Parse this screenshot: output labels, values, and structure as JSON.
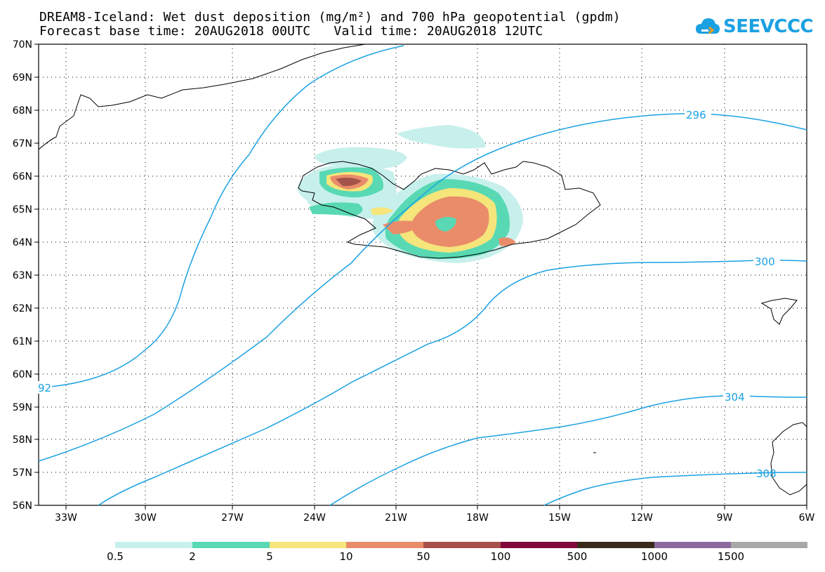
{
  "title": {
    "line1": "DREAM8-Iceland: Wet dust deposition (mg/m²) and 700 hPa geopotential (gpdm)",
    "line2": "Forecast base time: 20AUG2018 00UTC   Valid time: 20AUG2018 12UTC"
  },
  "logo": {
    "text": "SEEVCCC",
    "icon": "cloud-icon",
    "color": "#1ba1e2"
  },
  "axes": {
    "lat_labels": [
      "70N",
      "69N",
      "68N",
      "67N",
      "66N",
      "65N",
      "64N",
      "63N",
      "62N",
      "61N",
      "60N",
      "59N",
      "58N",
      "57N",
      "56N"
    ],
    "lon_labels": [
      "33W",
      "30W",
      "27W",
      "24W",
      "21W",
      "18W",
      "15W",
      "12W",
      "9W",
      "6W"
    ],
    "lat_range": [
      56,
      70
    ],
    "lon_range": [
      -34.4,
      -6
    ],
    "grid": "dotted"
  },
  "contours": {
    "color": "#1ba1e2",
    "labels": [
      "92",
      "296",
      "300",
      "304",
      "308"
    ]
  },
  "legend": {
    "colors": [
      "#c7f0ec",
      "#58d9b3",
      "#f5e57a",
      "#ea8c6a",
      "#a5524a",
      "#82083c",
      "#3a2a1a",
      "#8c6aa0",
      "#a8a8a8"
    ],
    "labels": [
      "0.5",
      "2",
      "5",
      "10",
      "50",
      "100",
      "500",
      "1000",
      "1500"
    ]
  }
}
